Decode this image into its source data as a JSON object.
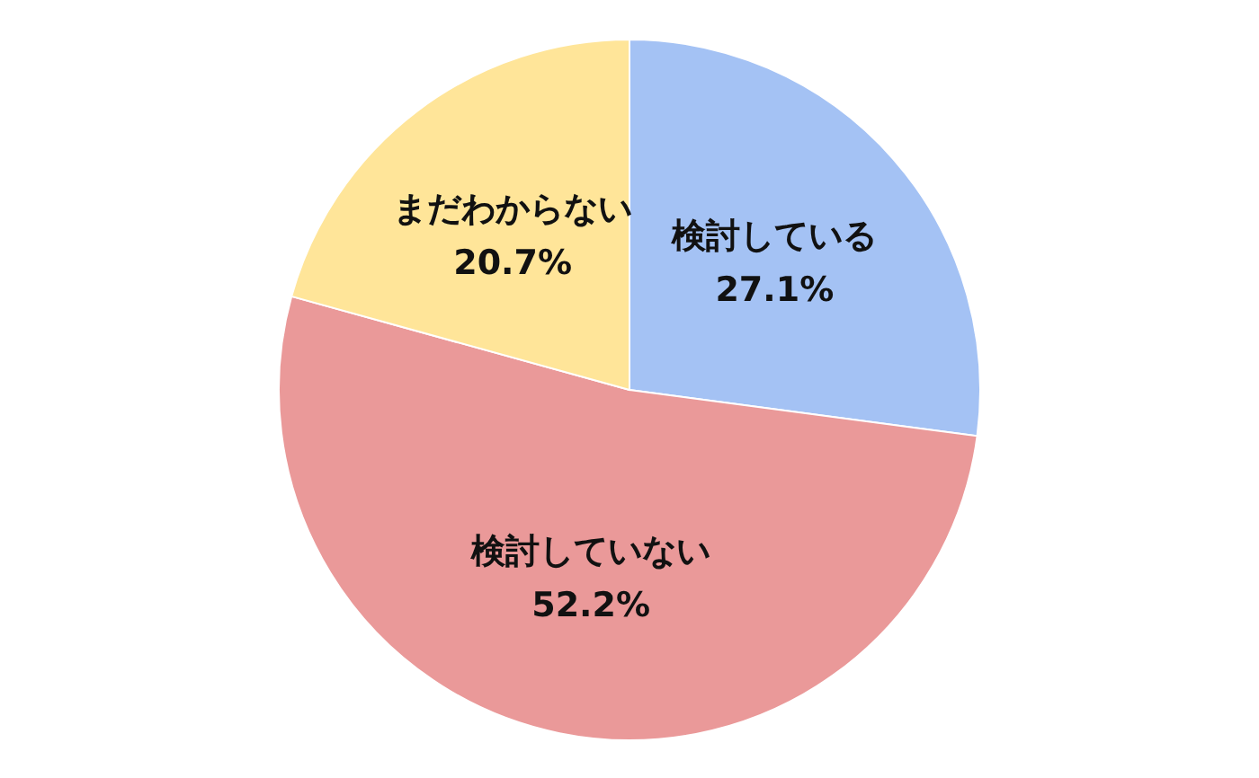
{
  "chart_data": {
    "type": "pie",
    "categories": [
      "検討している",
      "検討していない",
      "まだわからない"
    ],
    "values": [
      27.1,
      52.2,
      20.7
    ],
    "colors": [
      "#a4c2f4",
      "#ea9999",
      "#ffe599"
    ],
    "value_labels": [
      "27.1%",
      "52.2%",
      "20.7%"
    ]
  }
}
